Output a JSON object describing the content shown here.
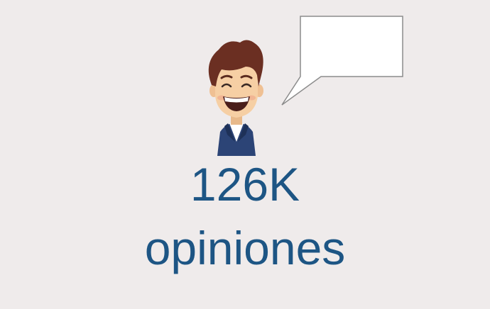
{
  "stats": {
    "count": "126K",
    "label": "opiniones"
  },
  "icons": {
    "avatar": "smiling-man-avatar-icon",
    "bubble": "speech-bubble-icon"
  },
  "colors": {
    "background": "#efebeb",
    "text": "#1d5584",
    "hair": "#6b2f22",
    "skin": "#f6cfa4",
    "jacket": "#2c4476",
    "bubble_fill": "#ffffff",
    "bubble_stroke": "#8c8c8c"
  }
}
